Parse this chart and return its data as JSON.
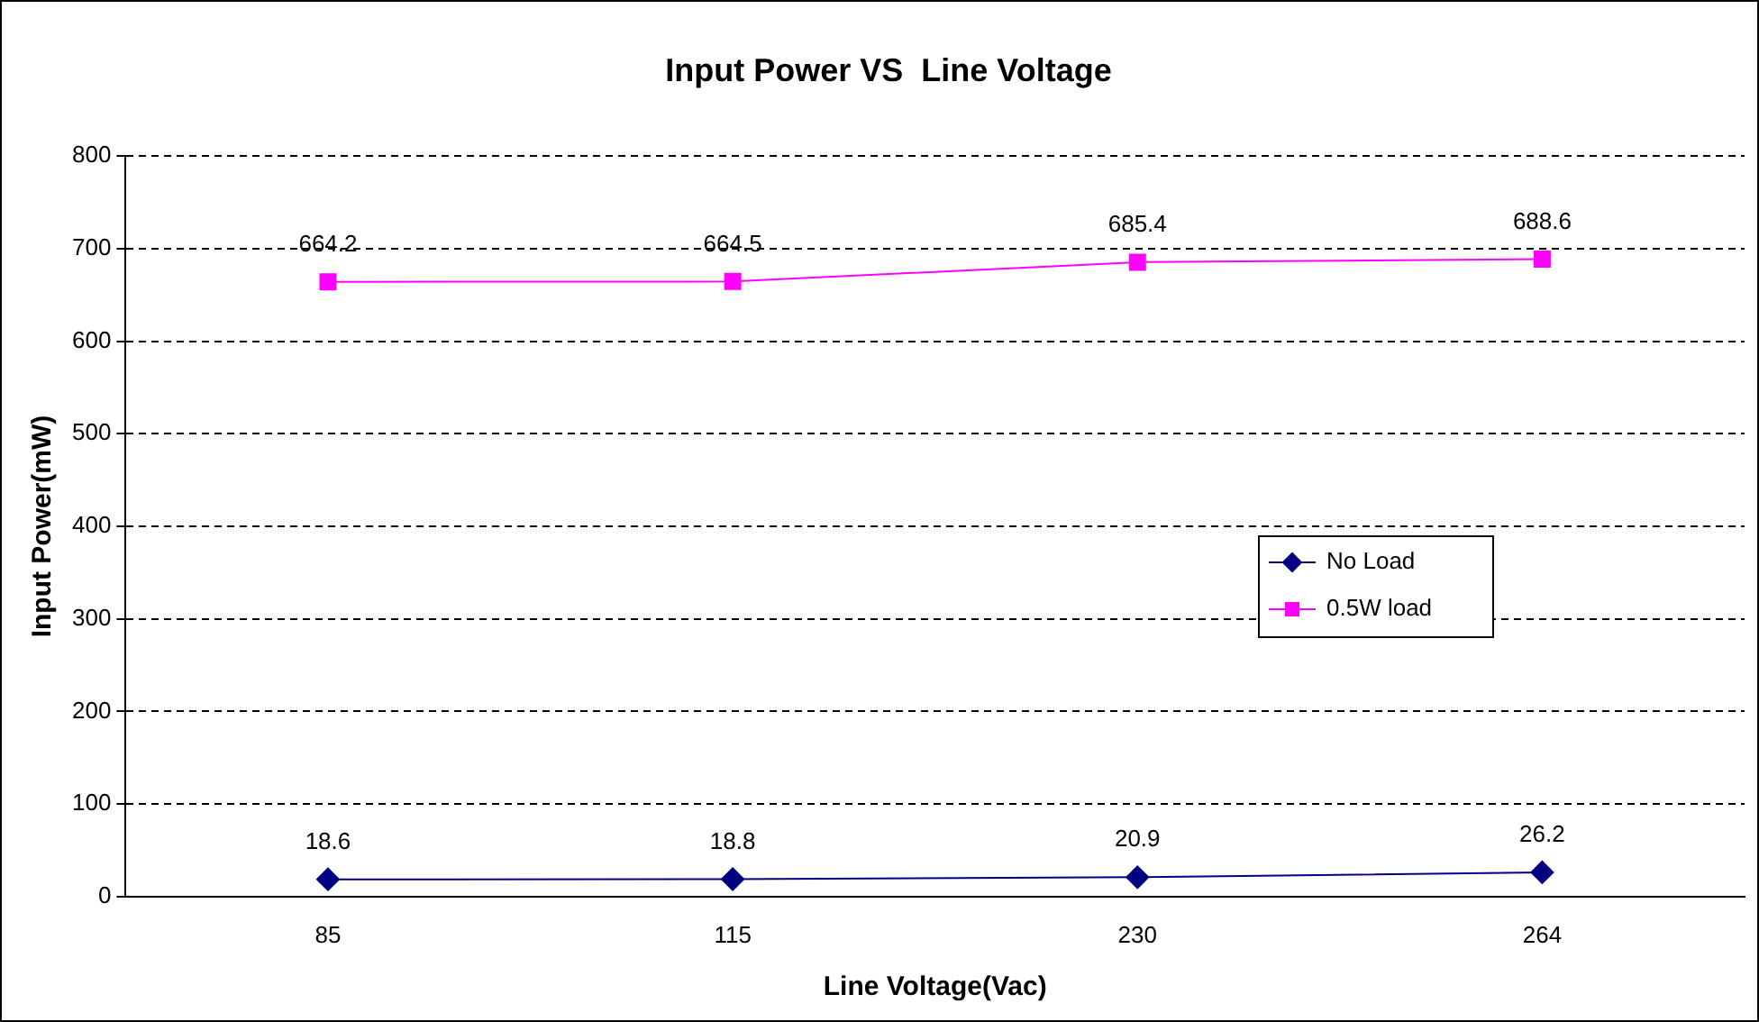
{
  "chart_data": {
    "type": "line",
    "title": "Input Power VS  Line Voltage",
    "xlabel": "Line Voltage(Vac)",
    "ylabel": "Input Power(mW)",
    "categories": [
      "85",
      "115",
      "230",
      "264"
    ],
    "series": [
      {
        "name": "No Load",
        "color": "#000080",
        "values": [
          18.6,
          18.8,
          20.9,
          26.2
        ],
        "marker": "diamond"
      },
      {
        "name": "0.5W load",
        "color": "#ff00ff",
        "values": [
          664.2,
          664.5,
          685.4,
          688.6
        ],
        "marker": "square"
      }
    ],
    "ylim": [
      0,
      800
    ],
    "yticks": [
      0,
      100,
      200,
      300,
      400,
      500,
      600,
      700,
      800
    ],
    "grid": "y",
    "line_style": "solid",
    "legend": "right",
    "data_labels": true
  }
}
